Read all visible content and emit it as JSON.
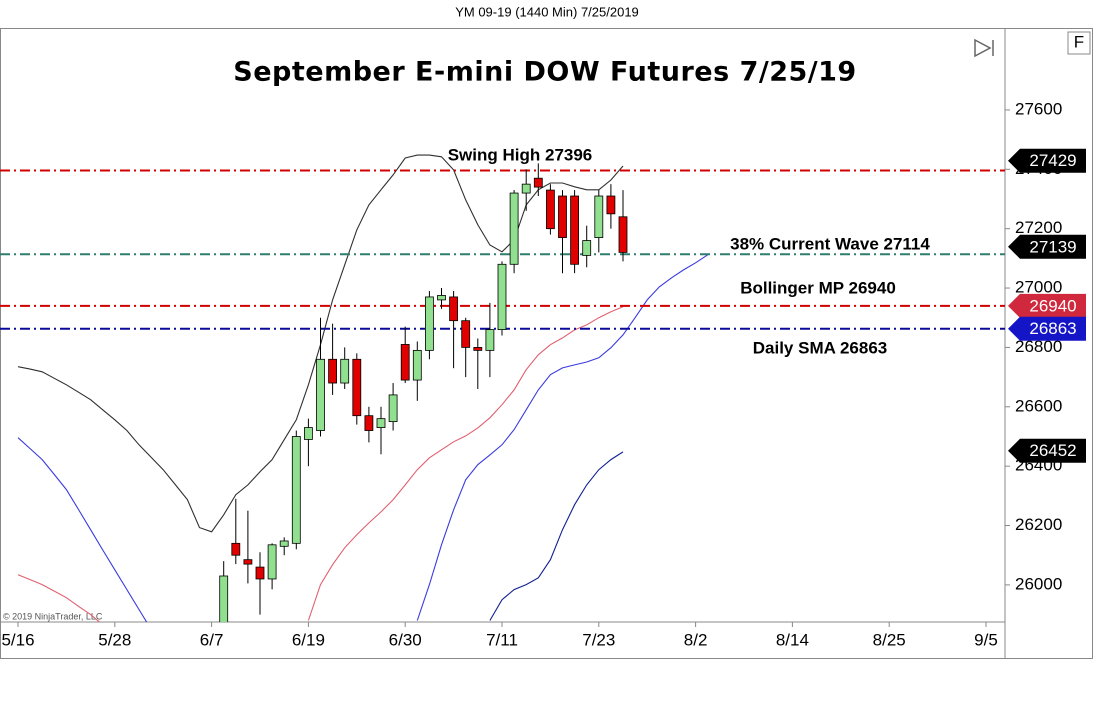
{
  "chart_data": {
    "type": "candlestick",
    "header": "YM 09-19 (1440 Min)  7/25/2019",
    "title": "September E-mini DOW Futures 7/25/19",
    "copyright": "© 2019 NinjaTrader, LLC",
    "menu_label": "F",
    "categories": [
      "5/16",
      null,
      null,
      null,
      null,
      null,
      null,
      null,
      "5/28",
      null,
      null,
      null,
      null,
      null,
      null,
      null,
      "6/7",
      null,
      null,
      null,
      null,
      null,
      null,
      null,
      "6/19",
      null,
      null,
      null,
      null,
      null,
      null,
      null,
      "6/30",
      null,
      null,
      null,
      null,
      null,
      null,
      null,
      "7/11",
      null,
      null,
      null,
      null,
      null,
      null,
      null,
      "7/23",
      null,
      null,
      null,
      null,
      null,
      null,
      null,
      "8/2",
      null,
      null,
      null,
      null,
      null,
      null,
      null,
      "8/14",
      null,
      null,
      null,
      null,
      null,
      null,
      null,
      "8/25",
      null,
      null,
      null,
      null,
      null,
      null,
      null,
      "9/5",
      null
    ],
    "open": [
      null,
      null,
      null,
      null,
      null,
      null,
      null,
      null,
      null,
      null,
      null,
      null,
      null,
      null,
      null,
      null,
      null,
      25860,
      26140,
      26085,
      26060,
      26020,
      26130,
      26140,
      26490,
      26520,
      26760,
      26680,
      26760,
      26570,
      26530,
      26550,
      26810,
      26690,
      26790,
      26960,
      26970,
      26890,
      26800,
      26790,
      26860,
      27080,
      27320,
      27370,
      27330,
      27310,
      27310,
      27110,
      27170,
      27310,
      27240,
      null,
      null,
      null,
      null,
      null,
      null,
      null,
      null,
      null,
      null,
      null,
      null,
      null,
      null,
      null,
      null,
      null,
      null,
      null,
      null,
      null,
      null,
      null,
      null,
      null,
      null,
      null,
      null,
      null,
      null,
      null
    ],
    "high": [
      null,
      null,
      null,
      null,
      null,
      null,
      null,
      null,
      null,
      null,
      null,
      null,
      null,
      null,
      null,
      null,
      null,
      26080,
      26290,
      26250,
      26110,
      26140,
      26160,
      26520,
      26560,
      26900,
      26880,
      26800,
      26780,
      26600,
      26600,
      26680,
      26870,
      26820,
      26990,
      27000,
      26990,
      26900,
      26830,
      26950,
      27090,
      27330,
      27400,
      27420,
      27350,
      27330,
      27330,
      27210,
      27330,
      27350,
      27330,
      null,
      null,
      null,
      null,
      null,
      null,
      null,
      null,
      null,
      null,
      null,
      null,
      null,
      null,
      null,
      null,
      null,
      null,
      null,
      null,
      null,
      null,
      null,
      null,
      null,
      null,
      null,
      null,
      null,
      null,
      null
    ],
    "low": [
      null,
      null,
      null,
      null,
      null,
      null,
      null,
      null,
      null,
      null,
      null,
      null,
      null,
      null,
      null,
      null,
      null,
      25840,
      26070,
      26005,
      25900,
      25985,
      26100,
      26120,
      26400,
      26500,
      26640,
      26660,
      26540,
      26480,
      26440,
      26520,
      26680,
      26620,
      26760,
      26930,
      26730,
      26700,
      26660,
      26700,
      26840,
      27050,
      27260,
      27310,
      27180,
      27050,
      27050,
      27070,
      27120,
      27200,
      27090,
      null,
      null,
      null,
      null,
      null,
      null,
      null,
      null,
      null,
      null,
      null,
      null,
      null,
      null,
      null,
      null,
      null,
      null,
      null,
      null,
      null,
      null,
      null,
      null,
      null,
      null,
      null,
      null,
      null,
      null,
      null
    ],
    "close": [
      null,
      null,
      null,
      null,
      null,
      null,
      null,
      null,
      null,
      null,
      null,
      null,
      null,
      null,
      null,
      null,
      null,
      26030,
      26100,
      26070,
      26020,
      26135,
      26148,
      26500,
      26530,
      26760,
      26680,
      26760,
      26570,
      26520,
      26560,
      26640,
      26690,
      26790,
      26970,
      26975,
      26890,
      26800,
      26790,
      26860,
      27080,
      27320,
      27350,
      27340,
      27200,
      27170,
      27080,
      27160,
      27310,
      27250,
      27120,
      null,
      null,
      null,
      null,
      null,
      null,
      null,
      null,
      null,
      null,
      null,
      null,
      null,
      null,
      null,
      null,
      null,
      null,
      null,
      null,
      null,
      null,
      null,
      null,
      null,
      null,
      null,
      null,
      null,
      null,
      null
    ],
    "up_color": "#90e090",
    "down_color": "#e00000",
    "series": [
      {
        "color": "#303030",
        "values": [
          26735,
          26727,
          26718,
          26696,
          26674,
          26649,
          26624,
          26590,
          26556,
          26520,
          26472,
          26430,
          26388,
          26338,
          26287,
          26193,
          26179,
          26236,
          26304,
          26337,
          26381,
          26422,
          26489,
          26556,
          26674,
          26809,
          26960,
          27078,
          27196,
          27280,
          27331,
          27381,
          27438,
          27448,
          27448,
          27442,
          27398,
          27297,
          27213,
          27145,
          27122,
          27162,
          27280,
          27331,
          27354,
          27354,
          27341,
          27331,
          27331,
          27364,
          27411,
          null,
          null,
          null,
          null,
          null,
          null,
          null,
          null,
          null,
          null,
          null,
          null,
          null,
          null,
          null,
          null,
          null,
          null,
          null,
          null,
          null,
          null,
          null,
          null,
          null,
          null,
          null,
          null,
          null,
          null,
          null
        ]
      },
      {
        "color": "#e06070",
        "values": [
          26034,
          26018,
          26001,
          25979,
          25957,
          25928,
          25900,
          25866,
          null,
          null,
          null,
          null,
          null,
          null,
          null,
          null,
          null,
          null,
          null,
          null,
          null,
          null,
          null,
          null,
          25880,
          26001,
          26068,
          26125,
          26169,
          26209,
          26246,
          26287,
          26337,
          26388,
          26428,
          26455,
          26482,
          26502,
          26529,
          26563,
          26607,
          26657,
          26725,
          26775,
          26809,
          26832,
          26859,
          26876,
          26900,
          26920,
          26937,
          null,
          null,
          null,
          null,
          null,
          null,
          null,
          null,
          null,
          null,
          null,
          null,
          null,
          null,
          null,
          null,
          null,
          null,
          null,
          null,
          null,
          null,
          null,
          null,
          null,
          null,
          null,
          null,
          null,
          null,
          null
        ]
      },
      {
        "color": "#3a3ae0",
        "values": [
          26496,
          26459,
          26422,
          26372,
          26321,
          26254,
          26186,
          26118,
          26051,
          25984,
          25917,
          25850,
          null,
          null,
          null,
          null,
          null,
          null,
          null,
          null,
          null,
          null,
          null,
          null,
          null,
          null,
          null,
          null,
          null,
          null,
          null,
          null,
          null,
          25880,
          26001,
          26135,
          26253,
          26354,
          26405,
          26438,
          26472,
          26523,
          26590,
          26657,
          26708,
          26731,
          26741,
          26751,
          26765,
          26799,
          26842,
          26900,
          26960,
          27004,
          27034,
          27061,
          27085,
          27112,
          null,
          null,
          null,
          null,
          null,
          null,
          null,
          null,
          null,
          null,
          null,
          null,
          null,
          null,
          null,
          null,
          null,
          null,
          null,
          null,
          null,
          null,
          null,
          null
        ]
      },
      {
        "color": "#102090",
        "values": [
          null,
          null,
          null,
          null,
          null,
          null,
          null,
          null,
          null,
          null,
          null,
          null,
          null,
          null,
          null,
          null,
          null,
          null,
          null,
          null,
          null,
          null,
          null,
          null,
          null,
          null,
          null,
          null,
          null,
          null,
          null,
          null,
          null,
          null,
          null,
          null,
          null,
          null,
          null,
          25880,
          25950,
          25984,
          26001,
          26024,
          26085,
          26186,
          26270,
          26337,
          26388,
          26422,
          26448,
          null,
          null,
          null,
          null,
          null,
          null,
          null,
          null,
          null,
          null,
          null,
          null,
          null,
          null,
          null,
          null,
          null,
          null,
          null,
          null,
          null,
          null,
          null,
          null,
          null,
          null,
          null,
          null,
          null,
          null,
          null
        ]
      }
    ],
    "levels": [
      {
        "label": "Swing High 27396",
        "value": 27396,
        "color": "#d00000"
      },
      {
        "label": "38% Current Wave 27114",
        "value": 27114,
        "color": "#2e7d6e"
      },
      {
        "label": "Bollinger MP 26940",
        "value": 26940,
        "color": "#d00000"
      },
      {
        "label": "Daily SMA 26863",
        "value": 26863,
        "color": "#0a0a9a"
      }
    ],
    "badges": [
      {
        "value": 27429,
        "color": "#000000"
      },
      {
        "value": 27139,
        "color": "#000000"
      },
      {
        "value": 26940,
        "color": "#d0283c"
      },
      {
        "value": 26863,
        "color": "#1515c8"
      },
      {
        "value": 26452,
        "color": "#000000"
      }
    ],
    "ylim": [
      25875,
      27876
    ],
    "yticks": [
      26000,
      26200,
      26400,
      26600,
      26800,
      27000,
      27200,
      27400,
      27600
    ]
  }
}
